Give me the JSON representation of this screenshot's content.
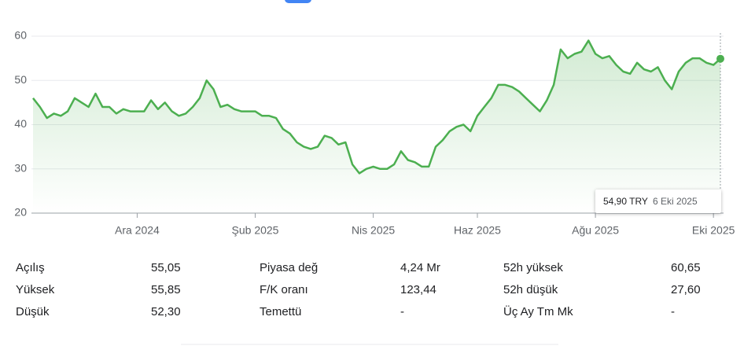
{
  "chart_data": {
    "type": "line",
    "categories": [
      null,
      null,
      null,
      null,
      null,
      null,
      null,
      null,
      null,
      null,
      null,
      null,
      null,
      null,
      null,
      "Ara 2024",
      null,
      null,
      null,
      null,
      null,
      null,
      null,
      null,
      null,
      null,
      null,
      null,
      null,
      null,
      null,
      null,
      "Şub 2025",
      null,
      null,
      null,
      null,
      null,
      null,
      null,
      null,
      null,
      null,
      null,
      null,
      null,
      null,
      null,
      null,
      "Nis 2025",
      null,
      null,
      null,
      null,
      null,
      null,
      null,
      null,
      null,
      null,
      null,
      null,
      null,
      null,
      "Haz 2025",
      null,
      null,
      null,
      null,
      null,
      null,
      null,
      null,
      null,
      null,
      null,
      null,
      null,
      null,
      null,
      null,
      "Ağu 2025",
      null,
      null,
      null,
      null,
      null,
      null,
      null,
      null,
      null,
      null,
      null,
      null,
      null,
      null,
      null,
      null,
      "Eki 2025",
      null
    ],
    "series": [
      {
        "color": "#4caf50",
        "values": [
          46,
          44,
          41.5,
          42.5,
          42,
          43,
          46,
          45,
          44,
          47,
          44,
          44,
          42.5,
          43.5,
          43,
          43,
          43,
          45.5,
          43.5,
          45,
          43,
          42,
          42.5,
          44,
          46,
          50,
          48,
          44,
          44.5,
          43.5,
          43,
          43,
          43,
          42,
          42,
          41.5,
          39,
          38,
          36,
          35,
          34.5,
          35,
          37.5,
          37,
          35.5,
          36,
          31,
          29,
          30,
          30.5,
          30,
          30,
          31,
          34,
          32,
          31.5,
          30.5,
          30.5,
          35,
          36.5,
          38.5,
          39.5,
          40,
          38.5,
          42,
          44,
          46,
          49,
          49,
          48.5,
          47.5,
          46,
          44.5,
          43,
          45.5,
          49,
          57,
          55,
          56,
          56.5,
          59,
          56,
          55,
          55.5,
          53.5,
          52,
          51.5,
          54,
          52.5,
          52,
          53,
          50,
          48,
          52,
          54,
          55,
          55,
          54,
          53.5,
          54.9
        ]
      }
    ],
    "ylim": [
      20,
      60
    ],
    "yticks": [
      20,
      30,
      40,
      50,
      60
    ],
    "grid": true
  },
  "tooltip": {
    "price": "54,90 TRY",
    "date": "6 Eki 2025"
  },
  "stats": [
    [
      {
        "label": "Açılış",
        "value": "55,05"
      },
      {
        "label": "Piyasa değ",
        "value": "4,24 Mr"
      },
      {
        "label": "52h yüksek",
        "value": "60,65"
      }
    ],
    [
      {
        "label": "Yüksek",
        "value": "55,85"
      },
      {
        "label": "F/K oranı",
        "value": "123,44"
      },
      {
        "label": "52h düşük",
        "value": "27,60"
      }
    ],
    [
      {
        "label": "Düşük",
        "value": "52,30"
      },
      {
        "label": "Temettü",
        "value": "-"
      },
      {
        "label": "Üç Ay Tm Mk",
        "value": "-"
      }
    ]
  ]
}
